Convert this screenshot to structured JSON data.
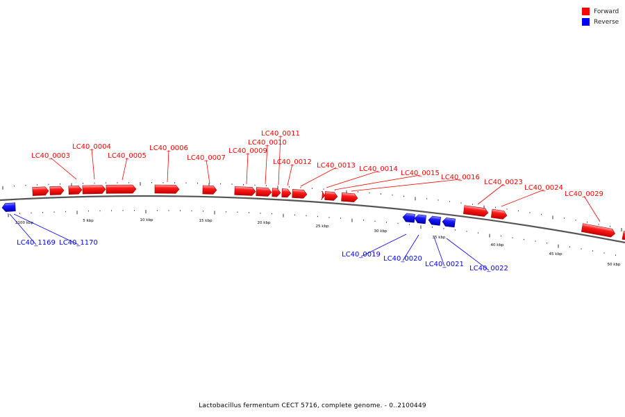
{
  "caption": "Lactobacillus fermentum CECT 5716, complete genome. - 0..2100449",
  "legend": [
    {
      "label": "Forward",
      "color": "#ff0000"
    },
    {
      "label": "Reverse",
      "color": "#0000ff"
    }
  ],
  "colors": {
    "forward": "#ff0000",
    "reverse": "#0000ff",
    "backbone": "#555555"
  },
  "kbp_labels": [
    "2100 kbp",
    "5 kbp",
    "10 kbp",
    "15 kbp",
    "20 kbp",
    "25 kbp",
    "30 kbp",
    "35 kbp",
    "40 kbp",
    "45 kbp",
    "50 kbp"
  ],
  "forward_genes": [
    "LC40_0003",
    "LC40_0004",
    "LC40_0005",
    "LC40_0006",
    "LC40_0007",
    "LC40_0009",
    "LC40_0010",
    "LC40_0011",
    "LC40_0012",
    "LC40_0013",
    "LC40_0014",
    "LC40_0015",
    "LC40_0016",
    "LC40_0023",
    "LC40_0024",
    "LC40_0029"
  ],
  "reverse_genes": [
    "LC40_1169",
    "LC40_1170",
    "LC40_0019",
    "LC40_0020",
    "LC40_0021",
    "LC40_0022"
  ]
}
